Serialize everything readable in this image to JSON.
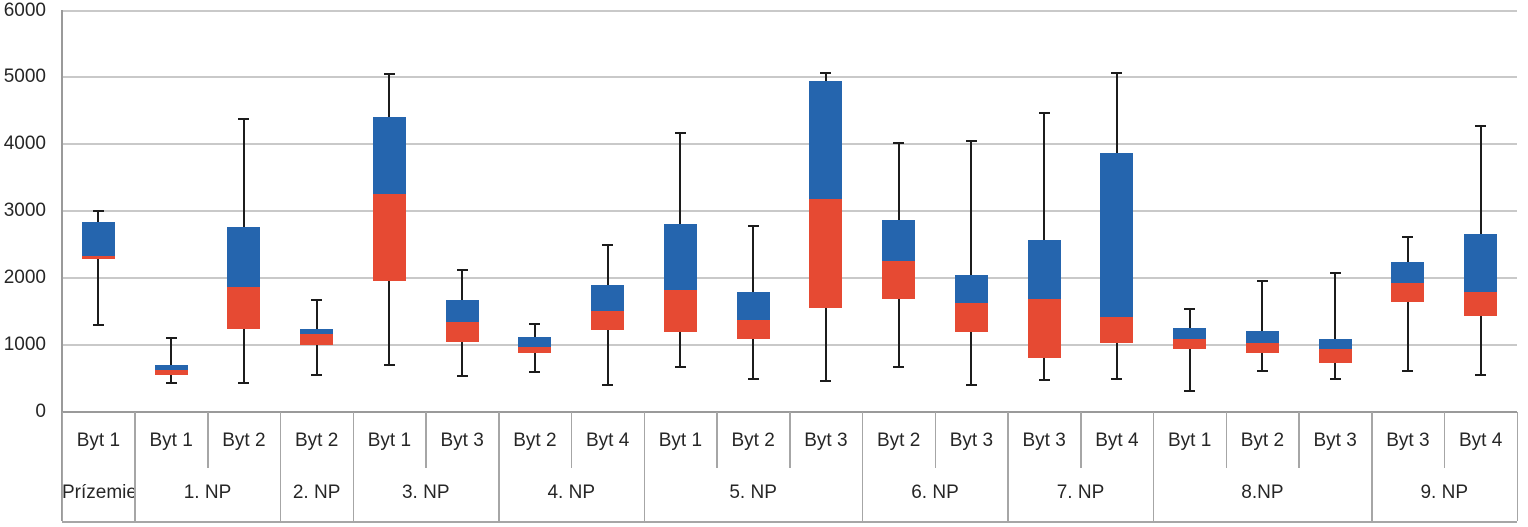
{
  "chart_data": {
    "type": "bar",
    "variant": "floating stacked columns (red lower segment + blue upper segment) with black min/max whiskers, Excel stock-chart style",
    "title": "",
    "xlabel": "",
    "ylabel": "",
    "ylim": [
      0,
      6000
    ],
    "y_ticks": [
      0,
      1000,
      2000,
      3000,
      4000,
      5000,
      6000
    ],
    "y_tick_labels": [
      "0",
      "1000",
      "2000",
      "3000",
      "4000",
      "5000",
      "6000"
    ],
    "grid": true,
    "legend": false,
    "x_axis_levels": [
      "apartment",
      "floor"
    ],
    "segment_note": "red segment spans q1..mid, blue segment spans mid..q3, whiskers span low..high",
    "floor_groups": [
      {
        "label": "Prízemie",
        "span": 1
      },
      {
        "label": "1. NP",
        "span": 2
      },
      {
        "label": "2. NP",
        "span": 1
      },
      {
        "label": "3. NP",
        "span": 2
      },
      {
        "label": "4. NP",
        "span": 2
      },
      {
        "label": "5. NP",
        "span": 3
      },
      {
        "label": "6. NP",
        "span": 2
      },
      {
        "label": "7. NP",
        "span": 2
      },
      {
        "label": "8.NP",
        "span": 3
      },
      {
        "label": "9. NP",
        "span": 2
      }
    ],
    "points": [
      {
        "floor": "Prízemie",
        "byt": "Byt 1",
        "low": 1300,
        "q1": 2280,
        "mid": 2330,
        "q3": 2840,
        "high": 3000
      },
      {
        "floor": "1. NP",
        "byt": "Byt 1",
        "low": 430,
        "q1": 540,
        "mid": 620,
        "q3": 700,
        "high": 1100
      },
      {
        "floor": "1. NP",
        "byt": "Byt 2",
        "low": 420,
        "q1": 1230,
        "mid": 1870,
        "q3": 2760,
        "high": 4380
      },
      {
        "floor": "2. NP",
        "byt": "Byt 2",
        "low": 550,
        "q1": 1000,
        "mid": 1160,
        "q3": 1230,
        "high": 1670
      },
      {
        "floor": "3. NP",
        "byt": "Byt 1",
        "low": 700,
        "q1": 1950,
        "mid": 3250,
        "q3": 4400,
        "high": 5050
      },
      {
        "floor": "3. NP",
        "byt": "Byt 3",
        "low": 530,
        "q1": 1040,
        "mid": 1340,
        "q3": 1670,
        "high": 2120
      },
      {
        "floor": "4. NP",
        "byt": "Byt 2",
        "low": 590,
        "q1": 870,
        "mid": 960,
        "q3": 1110,
        "high": 1310
      },
      {
        "floor": "4. NP",
        "byt": "Byt 4",
        "low": 400,
        "q1": 1220,
        "mid": 1500,
        "q3": 1900,
        "high": 2490
      },
      {
        "floor": "5. NP",
        "byt": "Byt 1",
        "low": 670,
        "q1": 1190,
        "mid": 1820,
        "q3": 2810,
        "high": 4170
      },
      {
        "floor": "5. NP",
        "byt": "Byt 2",
        "low": 490,
        "q1": 1090,
        "mid": 1370,
        "q3": 1790,
        "high": 2780
      },
      {
        "floor": "5. NP",
        "byt": "Byt 3",
        "low": 450,
        "q1": 1550,
        "mid": 3180,
        "q3": 4950,
        "high": 5060
      },
      {
        "floor": "6. NP",
        "byt": "Byt 2",
        "low": 670,
        "q1": 1680,
        "mid": 2250,
        "q3": 2860,
        "high": 4020
      },
      {
        "floor": "6. NP",
        "byt": "Byt 3",
        "low": 400,
        "q1": 1190,
        "mid": 1620,
        "q3": 2040,
        "high": 4040
      },
      {
        "floor": "7. NP",
        "byt": "Byt 3",
        "low": 470,
        "q1": 800,
        "mid": 1690,
        "q3": 2570,
        "high": 4460
      },
      {
        "floor": "7. NP",
        "byt": "Byt 4",
        "low": 480,
        "q1": 1030,
        "mid": 1410,
        "q3": 3870,
        "high": 5060
      },
      {
        "floor": "8.NP",
        "byt": "Byt 1",
        "low": 300,
        "q1": 940,
        "mid": 1080,
        "q3": 1250,
        "high": 1540
      },
      {
        "floor": "8.NP",
        "byt": "Byt 2",
        "low": 600,
        "q1": 880,
        "mid": 1020,
        "q3": 1210,
        "high": 1950
      },
      {
        "floor": "8.NP",
        "byt": "Byt 3",
        "low": 480,
        "q1": 720,
        "mid": 930,
        "q3": 1090,
        "high": 2070
      },
      {
        "floor": "9. NP",
        "byt": "Byt 3",
        "low": 600,
        "q1": 1640,
        "mid": 1920,
        "q3": 2230,
        "high": 2610
      },
      {
        "floor": "9. NP",
        "byt": "Byt 4",
        "low": 540,
        "q1": 1430,
        "mid": 1790,
        "q3": 2650,
        "high": 4270
      }
    ],
    "colors": {
      "lower_segment": "#E64A33",
      "upper_segment": "#2565AE",
      "whisker": "#1c1c1c",
      "gridline": "#C9C9C9",
      "axis_line": "#9A9A9A",
      "table_line": "#A6A6A6",
      "text": "#262626",
      "background": "#FFFFFF"
    }
  }
}
